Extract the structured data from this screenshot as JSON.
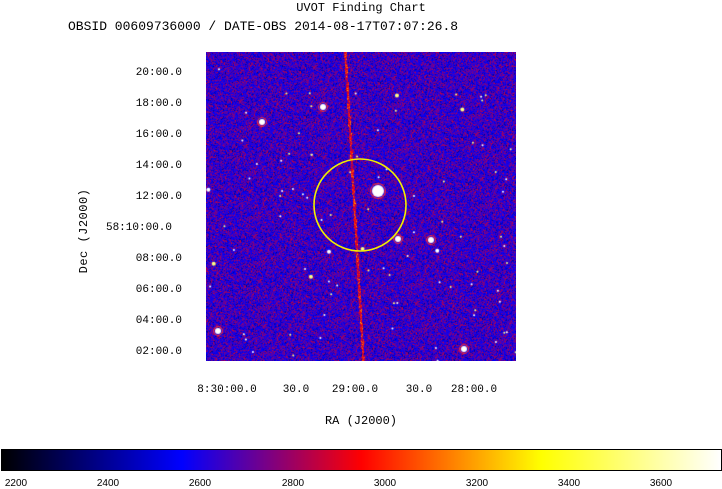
{
  "header": {
    "title": "UVOT Finding Chart",
    "subtitle": "OBSID 00609736000 / DATE-OBS 2014-08-17T07:07:26.8"
  },
  "axes": {
    "ylabel": "Dec (J2000)",
    "xlabel": "RA (J2000)",
    "dec_ticks": [
      "20:00.0",
      "18:00.0",
      "16:00.0",
      "14:00.0",
      "12:00.0",
      "58:10:00.0",
      "08:00.0",
      "06:00.0",
      "04:00.0",
      "02:00.0"
    ],
    "ra_ticks": [
      "8:30:00.0",
      "30.0",
      "29:00.0",
      "30.0",
      "28:00.0"
    ]
  },
  "colorbar": {
    "ticks": [
      "2200",
      "2400",
      "2600",
      "2800",
      "3000",
      "3200",
      "3400",
      "3600"
    ],
    "colors": [
      "#000000",
      "#0000ff",
      "#ff0000",
      "#ffff00",
      "#ffffff"
    ]
  },
  "marker": {
    "shape": "circle",
    "color": "#f0f000"
  }
}
